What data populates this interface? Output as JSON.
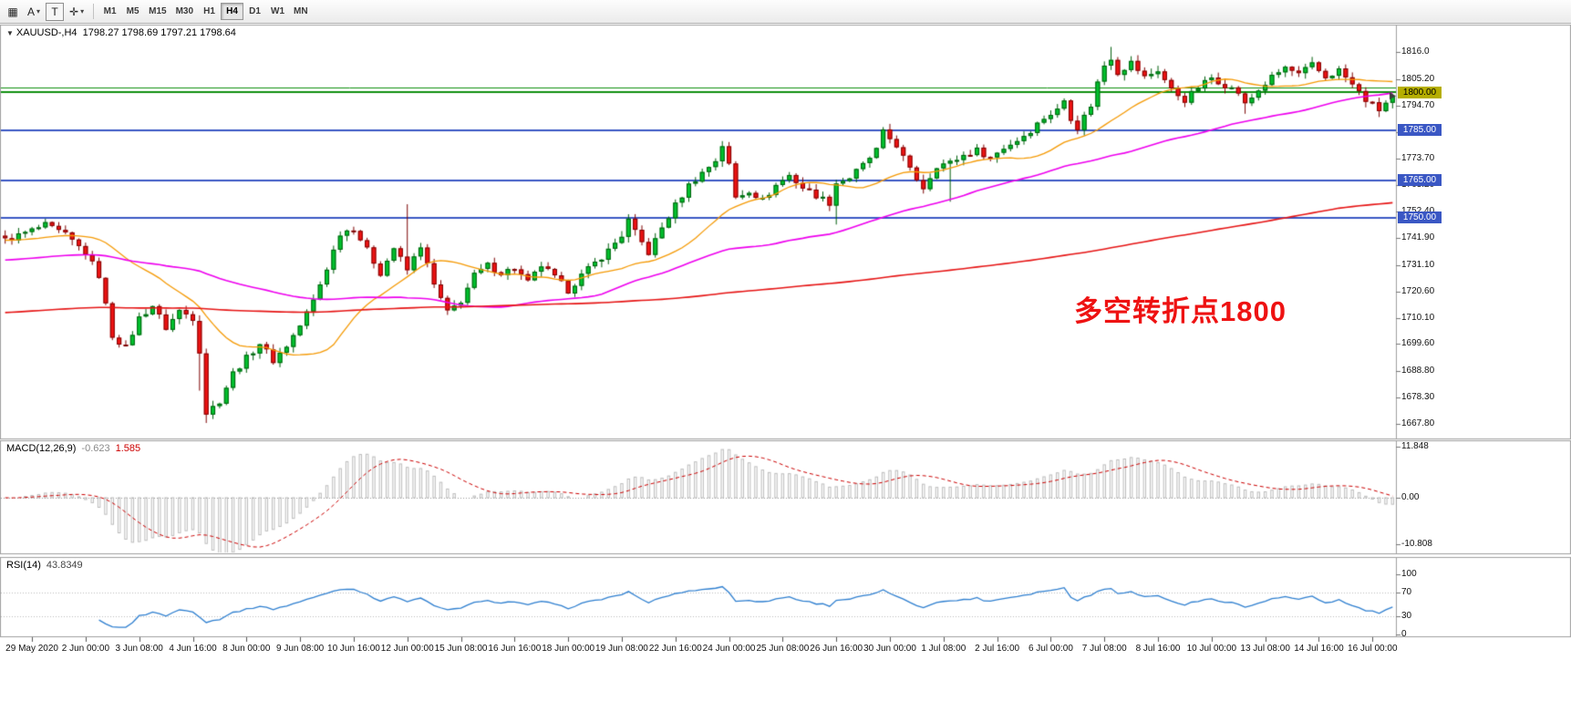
{
  "toolbar": {
    "caret_glyph": "▾",
    "tools": [
      {
        "name": "chart-grid-icon",
        "glyph": "▦",
        "boxed": false,
        "has_dropdown": false
      },
      {
        "name": "annotation-a-icon",
        "glyph": "A",
        "boxed": false,
        "has_dropdown": true
      },
      {
        "name": "text-tool-icon",
        "glyph": "T",
        "boxed": true,
        "has_dropdown": false
      },
      {
        "name": "crosshair-tool-icon",
        "glyph": "✛",
        "boxed": false,
        "has_dropdown": true
      }
    ],
    "timeframes": [
      {
        "label": "M1",
        "active": false
      },
      {
        "label": "M5",
        "active": false
      },
      {
        "label": "M15",
        "active": false
      },
      {
        "label": "M30",
        "active": false
      },
      {
        "label": "H1",
        "active": false
      },
      {
        "label": "H4",
        "active": true
      },
      {
        "label": "D1",
        "active": false
      },
      {
        "label": "W1",
        "active": false
      },
      {
        "label": "MN",
        "active": false
      }
    ]
  },
  "main_chart": {
    "collapse_glyph": "▼",
    "symbol_period": "XAUUSD-,H4",
    "ohlc": "1798.27 1798.69 1797.21 1798.64",
    "annotation": {
      "text": "多空转折点1800",
      "color": "#ee1212"
    }
  },
  "price_axis": {
    "ticks": [
      "1816.0",
      "1805.20",
      "1794.70",
      "1784.20",
      "1773.70",
      "1763.20",
      "1752.40",
      "1741.90",
      "1731.10",
      "1720.60",
      "1710.10",
      "1699.60",
      "1688.80",
      "1678.30",
      "1667.80"
    ],
    "tick_values": [
      1816.0,
      1805.2,
      1794.7,
      1784.2,
      1773.7,
      1763.2,
      1752.4,
      1741.9,
      1731.1,
      1720.6,
      1710.1,
      1699.6,
      1688.8,
      1678.3,
      1667.8
    ],
    "tags": [
      {
        "label": "1800.00",
        "value": 1800.0,
        "bg": "#b5ae00",
        "fg": "#000000"
      },
      {
        "label": "1785.00",
        "value": 1785.0,
        "bg": "#3a57c4",
        "fg": "#ffffff"
      },
      {
        "label": "1765.00",
        "value": 1765.0,
        "bg": "#3a57c4",
        "fg": "#ffffff"
      },
      {
        "label": "1750.00",
        "value": 1750.0,
        "bg": "#3a57c4",
        "fg": "#ffffff"
      }
    ],
    "last_price_marker": {
      "value": 1798.64,
      "color": "#3c3c3c"
    }
  },
  "indicators": {
    "macd": {
      "label": "MACD(12,26,9)",
      "main_value": "-0.623",
      "signal_value": "1.585",
      "main_color": "#8a8a8a",
      "signal_color": "#cc0000",
      "hist_color": "#bcbcbc",
      "fast": 12,
      "slow": 26,
      "signal": 9,
      "axis_ticks": [
        "11.848",
        "0.00",
        "-10.808"
      ],
      "axis_values": [
        11.848,
        0,
        -10.808
      ]
    },
    "rsi": {
      "label": "RSI(14)",
      "value": "43.8349",
      "period": 14,
      "color": "#2e7fd0",
      "levels": [
        70,
        30
      ],
      "axis_ticks": [
        "100",
        "70",
        "30",
        "0"
      ],
      "axis_values": [
        100,
        70,
        30,
        0
      ]
    }
  },
  "time_axis": {
    "labels": [
      "29 May 2020",
      "2 Jun 00:00",
      "3 Jun 08:00",
      "4 Jun 16:00",
      "8 Jun 00:00",
      "9 Jun 08:00",
      "10 Jun 16:00",
      "12 Jun 00:00",
      "15 Jun 08:00",
      "16 Jun 16:00",
      "18 Jun 00:00",
      "19 Jun 08:00",
      "22 Jun 16:00",
      "24 Jun 00:00",
      "25 Jun 08:00",
      "26 Jun 16:00",
      "30 Jun 00:00",
      "1 Jul 08:00",
      "2 Jul 16:00",
      "6 Jul 00:00",
      "7 Jul 08:00",
      "8 Jul 16:00",
      "10 Jul 00:00",
      "13 Jul 08:00",
      "14 Jul 16:00",
      "16 Jul 00:00"
    ]
  },
  "chart_data": {
    "type": "candlestick",
    "symbol": "XAUUSD",
    "timeframe": "H4",
    "bars": 208,
    "first_label_bar": 4,
    "label_step": 8,
    "price_top": 1826,
    "price_bottom": 1663,
    "last_close": 1798.64,
    "jitter": 1.3,
    "wick": 2.1,
    "up_color": "#00c22e",
    "up_border": "#005f0c",
    "down_color": "#ef1212",
    "down_border": "#7d0404",
    "close_waypoints": [
      [
        0,
        1741
      ],
      [
        3,
        1744
      ],
      [
        6,
        1747
      ],
      [
        9,
        1743
      ],
      [
        12,
        1736
      ],
      [
        14,
        1727
      ],
      [
        16,
        1703
      ],
      [
        18,
        1698
      ],
      [
        20,
        1710
      ],
      [
        22,
        1715
      ],
      [
        24,
        1706
      ],
      [
        26,
        1713
      ],
      [
        28,
        1710
      ],
      [
        29,
        1697
      ],
      [
        30,
        1672
      ],
      [
        32,
        1677
      ],
      [
        34,
        1688
      ],
      [
        36,
        1694
      ],
      [
        38,
        1700
      ],
      [
        40,
        1693
      ],
      [
        42,
        1699
      ],
      [
        44,
        1707
      ],
      [
        46,
        1717
      ],
      [
        48,
        1730
      ],
      [
        50,
        1744
      ],
      [
        52,
        1746
      ],
      [
        54,
        1737
      ],
      [
        56,
        1728
      ],
      [
        58,
        1738
      ],
      [
        60,
        1729
      ],
      [
        62,
        1739
      ],
      [
        64,
        1723
      ],
      [
        66,
        1712
      ],
      [
        68,
        1717
      ],
      [
        70,
        1727
      ],
      [
        72,
        1731
      ],
      [
        74,
        1728
      ],
      [
        76,
        1730
      ],
      [
        78,
        1724
      ],
      [
        80,
        1731
      ],
      [
        82,
        1726
      ],
      [
        84,
        1721
      ],
      [
        86,
        1727
      ],
      [
        88,
        1732
      ],
      [
        90,
        1737
      ],
      [
        92,
        1743
      ],
      [
        93,
        1749
      ],
      [
        94,
        1744
      ],
      [
        96,
        1736
      ],
      [
        98,
        1746
      ],
      [
        100,
        1755
      ],
      [
        102,
        1763
      ],
      [
        104,
        1768
      ],
      [
        106,
        1773
      ],
      [
        107,
        1779
      ],
      [
        108,
        1771
      ],
      [
        109,
        1758
      ],
      [
        111,
        1761
      ],
      [
        113,
        1757
      ],
      [
        115,
        1763
      ],
      [
        117,
        1767
      ],
      [
        119,
        1762
      ],
      [
        121,
        1759
      ],
      [
        123,
        1756
      ],
      [
        124,
        1764
      ],
      [
        126,
        1766
      ],
      [
        128,
        1771
      ],
      [
        130,
        1777
      ],
      [
        131,
        1784
      ],
      [
        133,
        1779
      ],
      [
        135,
        1769
      ],
      [
        137,
        1762
      ],
      [
        139,
        1771
      ],
      [
        141,
        1772
      ],
      [
        143,
        1775
      ],
      [
        145,
        1777
      ],
      [
        147,
        1774
      ],
      [
        149,
        1778
      ],
      [
        151,
        1781
      ],
      [
        153,
        1785
      ],
      [
        155,
        1790
      ],
      [
        157,
        1793
      ],
      [
        158,
        1797
      ],
      [
        159,
        1790
      ],
      [
        160,
        1786
      ],
      [
        162,
        1795
      ],
      [
        163,
        1804
      ],
      [
        164,
        1811
      ],
      [
        165,
        1814
      ],
      [
        166,
        1808
      ],
      [
        168,
        1812
      ],
      [
        170,
        1806
      ],
      [
        172,
        1809
      ],
      [
        174,
        1801
      ],
      [
        176,
        1797
      ],
      [
        178,
        1802
      ],
      [
        180,
        1806
      ],
      [
        182,
        1803
      ],
      [
        184,
        1800
      ],
      [
        185,
        1795
      ],
      [
        187,
        1801
      ],
      [
        189,
        1806
      ],
      [
        191,
        1810
      ],
      [
        193,
        1807
      ],
      [
        195,
        1811
      ],
      [
        197,
        1806
      ],
      [
        199,
        1809
      ],
      [
        201,
        1803
      ],
      [
        203,
        1797
      ],
      [
        205,
        1793
      ],
      [
        207,
        1798.64
      ]
    ],
    "wick_overrides": [
      {
        "bar": 29,
        "low": 1681
      },
      {
        "bar": 30,
        "low": 1668.1
      },
      {
        "bar": 60,
        "high": 1755.4
      },
      {
        "bar": 107,
        "high": 1780.6
      },
      {
        "bar": 124,
        "low": 1747.3
      },
      {
        "bar": 141,
        "low": 1756.4
      },
      {
        "bar": 165,
        "high": 1818.2
      },
      {
        "bar": 185,
        "low": 1791.5
      },
      {
        "bar": 205,
        "low": 1790.2
      }
    ],
    "hlines": [
      {
        "value": 1802.0,
        "color": "#0f8f0f",
        "width": 1
      },
      {
        "value": 1800.0,
        "color": "#0f8f0f",
        "width": 2
      },
      {
        "value": 1785.0,
        "color": "#3a57c4",
        "width": 2
      },
      {
        "value": 1765.0,
        "color": "#3a57c4",
        "width": 2
      },
      {
        "value": 1750.0,
        "color": "#3a57c4",
        "width": 2
      }
    ],
    "mas": [
      {
        "name": "fast-ma",
        "period": 20,
        "seed": 1741,
        "color": "#f59a05",
        "width": 1.3
      },
      {
        "name": "mid-ma",
        "period": 60,
        "seed": 1733,
        "color": "#ee00ee",
        "width": 1.6
      },
      {
        "name": "slow-ma",
        "period": 200,
        "seed": 1712,
        "color": "#e61515",
        "width": 1.6
      }
    ]
  }
}
